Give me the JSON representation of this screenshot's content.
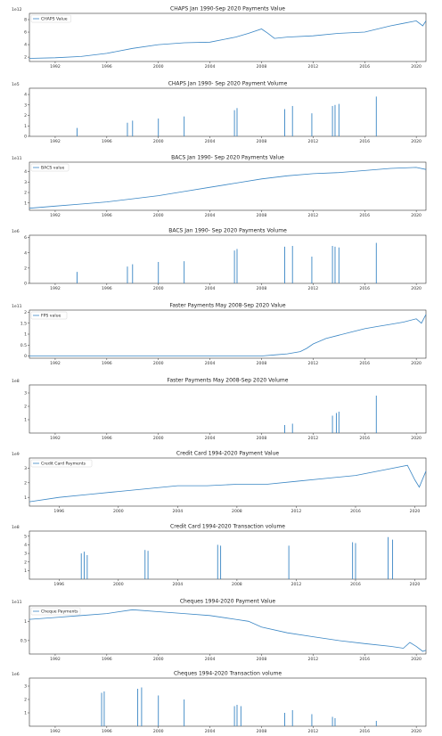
{
  "chart_data": [
    {
      "type": "line",
      "title": "CHAPS Jan 1990-Sep 2020 Payments Value",
      "exponent_label": "1e12",
      "legend": "CHAPS Value",
      "xlim": [
        1990.0,
        2020.75
      ],
      "xticks": [
        1992,
        1996,
        2000,
        2004,
        2008,
        2012,
        2016,
        2020
      ],
      "yticks": [
        2,
        4,
        6,
        8
      ],
      "ylim": [
        1.3,
        9.0
      ],
      "series": [
        {
          "name": "CHAPS Value",
          "x": [
            1990,
            1992,
            1994,
            1996,
            1998,
            2000,
            2002,
            2004,
            2006,
            2007,
            2008,
            2008.5,
            2009,
            2010,
            2012,
            2014,
            2016,
            2018,
            2019,
            2020,
            2020.5,
            2020.75
          ],
          "y": [
            1.8,
            1.9,
            2.1,
            2.6,
            3.4,
            4.0,
            4.3,
            4.4,
            5.2,
            5.8,
            6.5,
            5.8,
            5.0,
            5.2,
            5.4,
            5.8,
            6.0,
            7.0,
            7.4,
            7.8,
            7.0,
            7.8
          ]
        }
      ]
    },
    {
      "type": "bar",
      "title": "CHAPS Jan 1990- Sep 2020 Payment Volume",
      "exponent_label": "1e5",
      "xlim": [
        1990.0,
        2020.75
      ],
      "xticks": [
        1992,
        1996,
        2000,
        2004,
        2008,
        2012,
        2016,
        2020
      ],
      "yticks": [
        0,
        1,
        2,
        3,
        4
      ],
      "ylim": [
        0,
        4.6
      ],
      "series": [
        {
          "x": [
            1993.7,
            1997.6,
            1998.0,
            2000.0,
            2002.0,
            2005.9,
            2006.1,
            2009.8,
            2010.4,
            2011.9,
            2013.5,
            2013.7,
            2014.0,
            2016.9
          ],
          "y": [
            0.8,
            1.3,
            1.5,
            1.7,
            1.9,
            2.5,
            2.7,
            2.6,
            2.9,
            2.2,
            2.9,
            3.0,
            3.1,
            3.8
          ]
        }
      ]
    },
    {
      "type": "line",
      "title": "BACS Jan 1990- Sep 2020 Payments Value",
      "exponent_label": "1e11",
      "legend": "BACS value",
      "xlim": [
        1990.0,
        2020.75
      ],
      "xticks": [
        1992,
        1996,
        2000,
        2004,
        2008,
        2012,
        2016,
        2020
      ],
      "yticks": [
        1,
        2,
        3,
        4
      ],
      "ylim": [
        0.3,
        4.9
      ],
      "series": [
        {
          "name": "BACS value",
          "x": [
            1990,
            1992,
            1994,
            1996,
            1998,
            2000,
            2002,
            2004,
            2006,
            2008,
            2010,
            2012,
            2014,
            2016,
            2018,
            2020,
            2020.75
          ],
          "y": [
            0.5,
            0.7,
            0.9,
            1.1,
            1.4,
            1.7,
            2.1,
            2.5,
            2.9,
            3.3,
            3.6,
            3.8,
            3.9,
            4.1,
            4.3,
            4.4,
            4.2
          ]
        }
      ]
    },
    {
      "type": "bar",
      "title": "BACS Jan 1990- Sep 2020 Payments Volume",
      "exponent_label": "1e6",
      "xlim": [
        1990.0,
        2020.75
      ],
      "xticks": [
        1992,
        1996,
        2000,
        2004,
        2008,
        2012,
        2016,
        2020
      ],
      "yticks": [
        0,
        2,
        4,
        6
      ],
      "ylim": [
        0,
        6.3
      ],
      "series": [
        {
          "x": [
            1993.7,
            1997.6,
            1998.0,
            2000.0,
            2002.0,
            2005.9,
            2006.1,
            2009.8,
            2010.4,
            2011.9,
            2013.5,
            2013.7,
            2014.0,
            2016.9
          ],
          "y": [
            1.5,
            2.2,
            2.5,
            2.8,
            2.9,
            4.3,
            4.5,
            4.8,
            4.9,
            3.5,
            4.9,
            4.8,
            4.7,
            5.3
          ]
        }
      ]
    },
    {
      "type": "line",
      "title": "Faster Payments May 2008-Sep 2020 Value",
      "exponent_label": "1e11",
      "legend": "FPS value",
      "xlim": [
        1990.0,
        2020.75
      ],
      "xticks": [
        1992,
        1996,
        2000,
        2004,
        2008,
        2012,
        2016,
        2020
      ],
      "yticks": [
        0.0,
        0.5,
        1.0,
        1.5,
        2.0
      ],
      "ylim": [
        -0.1,
        2.1
      ],
      "series": [
        {
          "name": "FPS value",
          "x": [
            1990,
            2008,
            2009,
            2010,
            2011,
            2011.5,
            2012,
            2013,
            2014,
            2015,
            2016,
            2017,
            2018,
            2019,
            2020,
            2020.4,
            2020.75
          ],
          "y": [
            0.0,
            0.0,
            0.05,
            0.1,
            0.2,
            0.35,
            0.55,
            0.8,
            0.95,
            1.1,
            1.25,
            1.35,
            1.45,
            1.55,
            1.7,
            1.5,
            1.9
          ]
        }
      ]
    },
    {
      "type": "bar",
      "title": "Faster Payments May 2008-Sep 2020 Volume",
      "exponent_label": "1e8",
      "xlim": [
        1990.0,
        2020.75
      ],
      "xticks": [
        1992,
        1996,
        2000,
        2004,
        2008,
        2012,
        2016,
        2020
      ],
      "yticks": [
        1,
        2,
        3
      ],
      "ylim": [
        0,
        3.6
      ],
      "series": [
        {
          "x": [
            2009.8,
            2010.4,
            2013.5,
            2013.8,
            2014.0,
            2016.9
          ],
          "y": [
            0.6,
            0.7,
            1.3,
            1.5,
            1.6,
            2.8
          ]
        }
      ]
    },
    {
      "type": "line",
      "title": "Credit Card 1994-2020 Payment Value",
      "exponent_label": "1e9",
      "legend": "Credit Card Payments",
      "xlim": [
        1994.0,
        2020.75
      ],
      "xticks": [
        1996,
        2000,
        2004,
        2008,
        2012,
        2016,
        2020
      ],
      "yticks": [
        1,
        2,
        3
      ],
      "ylim": [
        0.4,
        3.7
      ],
      "series": [
        {
          "name": "Credit Card Payments",
          "x": [
            1994,
            1996,
            1998,
            2000,
            2002,
            2004,
            2006,
            2008,
            2010,
            2012,
            2014,
            2016,
            2018,
            2019.5,
            2020,
            2020.3,
            2020.75
          ],
          "y": [
            0.7,
            1.0,
            1.2,
            1.4,
            1.6,
            1.8,
            1.8,
            1.9,
            1.9,
            2.1,
            2.3,
            2.5,
            2.9,
            3.2,
            2.2,
            1.7,
            2.8
          ]
        }
      ]
    },
    {
      "type": "bar",
      "title": "Credit Card 1994-2020 Transaction volume",
      "exponent_label": "1e8",
      "xlim": [
        1994.0,
        2020.75
      ],
      "xticks": [
        1996,
        2000,
        2004,
        2008,
        2012,
        2016,
        2020
      ],
      "yticks": [
        1,
        2,
        3,
        4,
        5
      ],
      "ylim": [
        0,
        5.6
      ],
      "series": [
        {
          "x": [
            1997.5,
            1997.7,
            1997.9,
            2001.8,
            2002.0,
            2006.7,
            2006.9,
            2011.5,
            2015.8,
            2016.0,
            2018.2,
            2018.5
          ],
          "y": [
            3.0,
            3.2,
            2.8,
            3.4,
            3.3,
            4.0,
            3.9,
            3.9,
            4.3,
            4.2,
            4.9,
            4.6
          ]
        }
      ]
    },
    {
      "type": "line",
      "title": "Cheques 1994-2020 Payment Value",
      "exponent_label": "1e11",
      "legend": "Cheque Payments",
      "xlim": [
        1990.0,
        2020.75
      ],
      "xticks": [
        1992,
        1996,
        2000,
        2004,
        2008,
        2012,
        2016,
        2020
      ],
      "yticks": [
        0.5,
        1.0
      ],
      "ylim": [
        0.15,
        1.4
      ],
      "series": [
        {
          "name": "Cheque Payments",
          "x": [
            1990,
            1992,
            1994,
            1996,
            1998,
            2000,
            2002,
            2004,
            2006,
            2007,
            2008,
            2010,
            2012,
            2014,
            2016,
            2018,
            2019,
            2019.5,
            2020,
            2020.5,
            2020.75
          ],
          "y": [
            1.05,
            1.1,
            1.15,
            1.2,
            1.3,
            1.25,
            1.2,
            1.15,
            1.05,
            1.0,
            0.85,
            0.7,
            0.6,
            0.5,
            0.42,
            0.35,
            0.3,
            0.45,
            0.35,
            0.22,
            0.25
          ]
        }
      ]
    },
    {
      "type": "bar",
      "title": "Cheques 1994-2020 Transaction volume",
      "exponent_label": "1e6",
      "xlim": [
        1990.0,
        2020.75
      ],
      "xticks": [
        1992,
        1996,
        2000,
        2004,
        2008,
        2012,
        2016,
        2020
      ],
      "yticks": [
        1,
        2,
        3
      ],
      "ylim": [
        0,
        3.6
      ],
      "series": [
        {
          "x": [
            1995.6,
            1995.8,
            1998.4,
            1998.7,
            2000.0,
            2002.0,
            2005.9,
            2006.1,
            2006.4,
            2009.8,
            2010.4,
            2011.9,
            2013.5,
            2013.7,
            2016.9
          ],
          "y": [
            2.5,
            2.6,
            2.8,
            2.9,
            2.3,
            2.0,
            1.5,
            1.6,
            1.5,
            1.0,
            1.2,
            0.9,
            0.7,
            0.6,
            0.4
          ]
        }
      ]
    }
  ],
  "colors": {
    "line": "#3a86c4",
    "frame": "#333333"
  }
}
